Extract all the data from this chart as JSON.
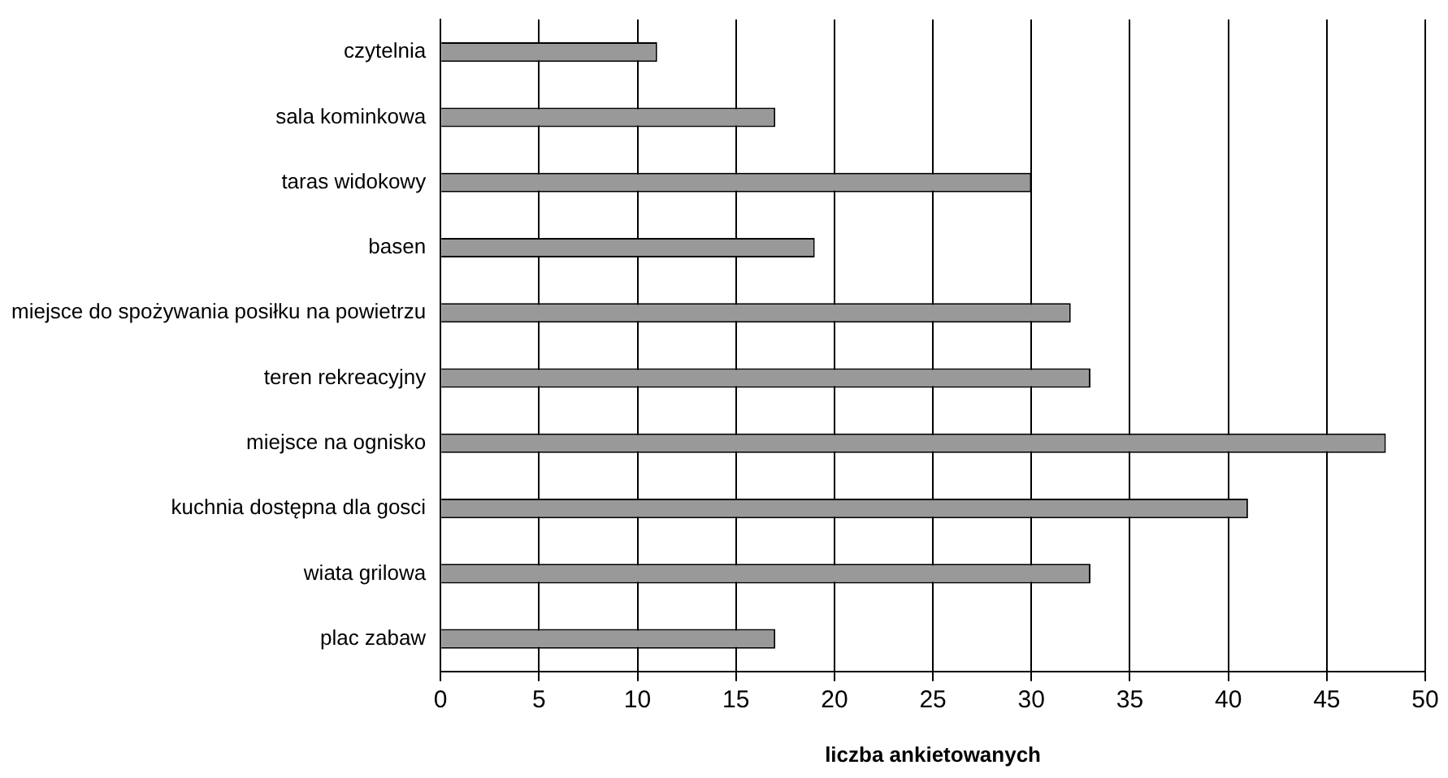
{
  "chart_data": {
    "type": "bar",
    "orientation": "horizontal",
    "xlabel": "liczba ankietowanych",
    "categories": [
      "czytelnia",
      "sala kominkowa",
      "taras widokowy",
      "basen",
      "miejsce do spożywania posiłku na powietrzu",
      "teren rekreacyjny",
      "miejsce na ognisko",
      "kuchnia dostępna dla gosci",
      "wiata grilowa",
      "plac zabaw"
    ],
    "values": [
      11,
      17,
      30,
      19,
      32,
      33,
      48,
      41,
      33,
      17
    ],
    "color": "#999999",
    "xlim": [
      0,
      50
    ],
    "xticks": [
      0,
      5,
      10,
      15,
      20,
      25,
      30,
      35,
      40,
      45,
      50
    ],
    "grid": "x",
    "legend": false
  }
}
